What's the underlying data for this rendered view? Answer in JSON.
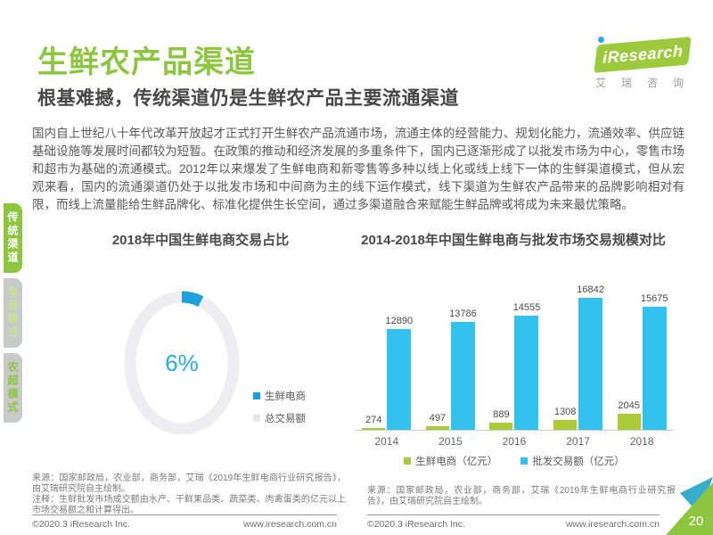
{
  "page": {
    "title": "生鲜农产品渠道",
    "subtitle": "根基难撼，传统渠道仍是生鲜农产品主要流通渠道",
    "body": "国内自上世纪八十年代改革开放起才正式打开生鲜农产品流通市场，流通主体的经营能力、规划化能力，流通效率、供应链基础设施等发展时间都较为短暂。在政策的推动和经济发展的多重条件下，国内已逐渐形成了以批发市场为中心，零售市场和超市为基础的流通模式。2012年以来爆发了生鲜电商和新零售等多种以线上化或线上线下一体的生鲜渠道模式，但从宏观来看，国内的流通渠道仍处于以批发市场和中间商为主的线下运作模式，线下渠道为生鲜农产品带来的品牌影响相对有限，而线上流量能给生鲜品牌化、标准化提供生长空间，通过多渠道融合来赋能生鲜品牌或将成为未来最优策略。"
  },
  "logo": {
    "text": "iResearch",
    "caption": "艾瑞咨询"
  },
  "sidebar": {
    "tabs": [
      {
        "label": "传统渠道",
        "active": true
      },
      {
        "label": "电商模式",
        "active": false
      },
      {
        "label": "农超模式",
        "active": false
      }
    ]
  },
  "colors": {
    "brand_green": "#8CC63F",
    "donut_blue": "#1E9FE0",
    "donut_gray": "#ECEEF1",
    "bar_green": "#A9CB3A",
    "bar_blue": "#33C1ED",
    "corner_teal": "#35AECC"
  },
  "chart_data": [
    {
      "type": "pie",
      "subtype": "donut",
      "title": "2018年中国生鲜电商交易占比",
      "center_label": "6%",
      "slices": [
        {
          "label": "生鲜电商",
          "value": 6,
          "color": "#1E9FE0"
        },
        {
          "label": "总交易额",
          "value": 94,
          "color": "#E6E9EC"
        }
      ],
      "legend_position": "right"
    },
    {
      "type": "bar",
      "title": "2014-2018年中国生鲜电商与批发市场交易规模对比",
      "categories": [
        "2014",
        "2015",
        "2016",
        "2017",
        "2018"
      ],
      "series": [
        {
          "name": "生鲜电商（亿元）",
          "color": "#A9CB3A",
          "values": [
            274,
            497,
            889,
            1308,
            2045
          ]
        },
        {
          "name": "批发交易额（亿元）",
          "color": "#33C1ED",
          "values": [
            12890,
            13786,
            14555,
            16842,
            15675
          ]
        }
      ],
      "ylim": [
        0,
        17000
      ],
      "grid": false,
      "legend_position": "bottom",
      "value_labels": true
    }
  ],
  "notes": {
    "left_source": "来源：国家邮政局，农业部，商务部，艾瑞《2019年生鲜电商行业研究报告》，由艾瑞研究院自主绘制。",
    "left_remark": "注释：生鲜批发市场成交额由水产、干鲜果品类、蔬菜类、肉禽蛋类的亿元以上市场交易额之和计算得出。",
    "right_source": "来源：国家邮政局，农业部，商务部，艾瑞《2019年生鲜电商行业研究报告》，由艾瑞研究院自主绘制。"
  },
  "footer": {
    "copyright": "©2020.3 iResearch Inc.",
    "website": "www.iresearch.com.cn",
    "page_number": "20"
  }
}
